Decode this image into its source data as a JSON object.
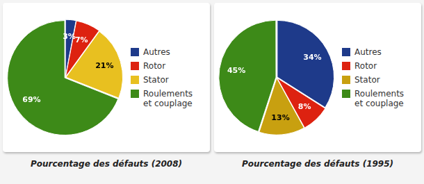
{
  "chart_data": [
    {
      "type": "pie",
      "title": "Pourcentage des défauts (2008)",
      "categories": [
        "Autres",
        "Rotor",
        "Stator",
        "Roulements\net couplage"
      ],
      "values": [
        3,
        7,
        21,
        69
      ],
      "value_labels": [
        "3%",
        "7%",
        "21%",
        "69%"
      ],
      "colors": [
        "#1E3A8A",
        "#DD2210",
        "#E8C020",
        "#3D8A18"
      ],
      "data_labels": true,
      "legend": "right"
    },
    {
      "type": "pie",
      "title": "Pourcentage des défauts (1995)",
      "categories": [
        "Autres",
        "Rotor",
        "Stator",
        "Roulements\net couplage"
      ],
      "values": [
        34,
        8,
        13,
        45
      ],
      "value_labels": [
        "34%",
        "8%",
        "13%",
        "45%"
      ],
      "colors": [
        "#1E3A8A",
        "#DD2210",
        "#C8A010",
        "#3D8A18"
      ],
      "data_labels": true,
      "legend": "right"
    }
  ]
}
